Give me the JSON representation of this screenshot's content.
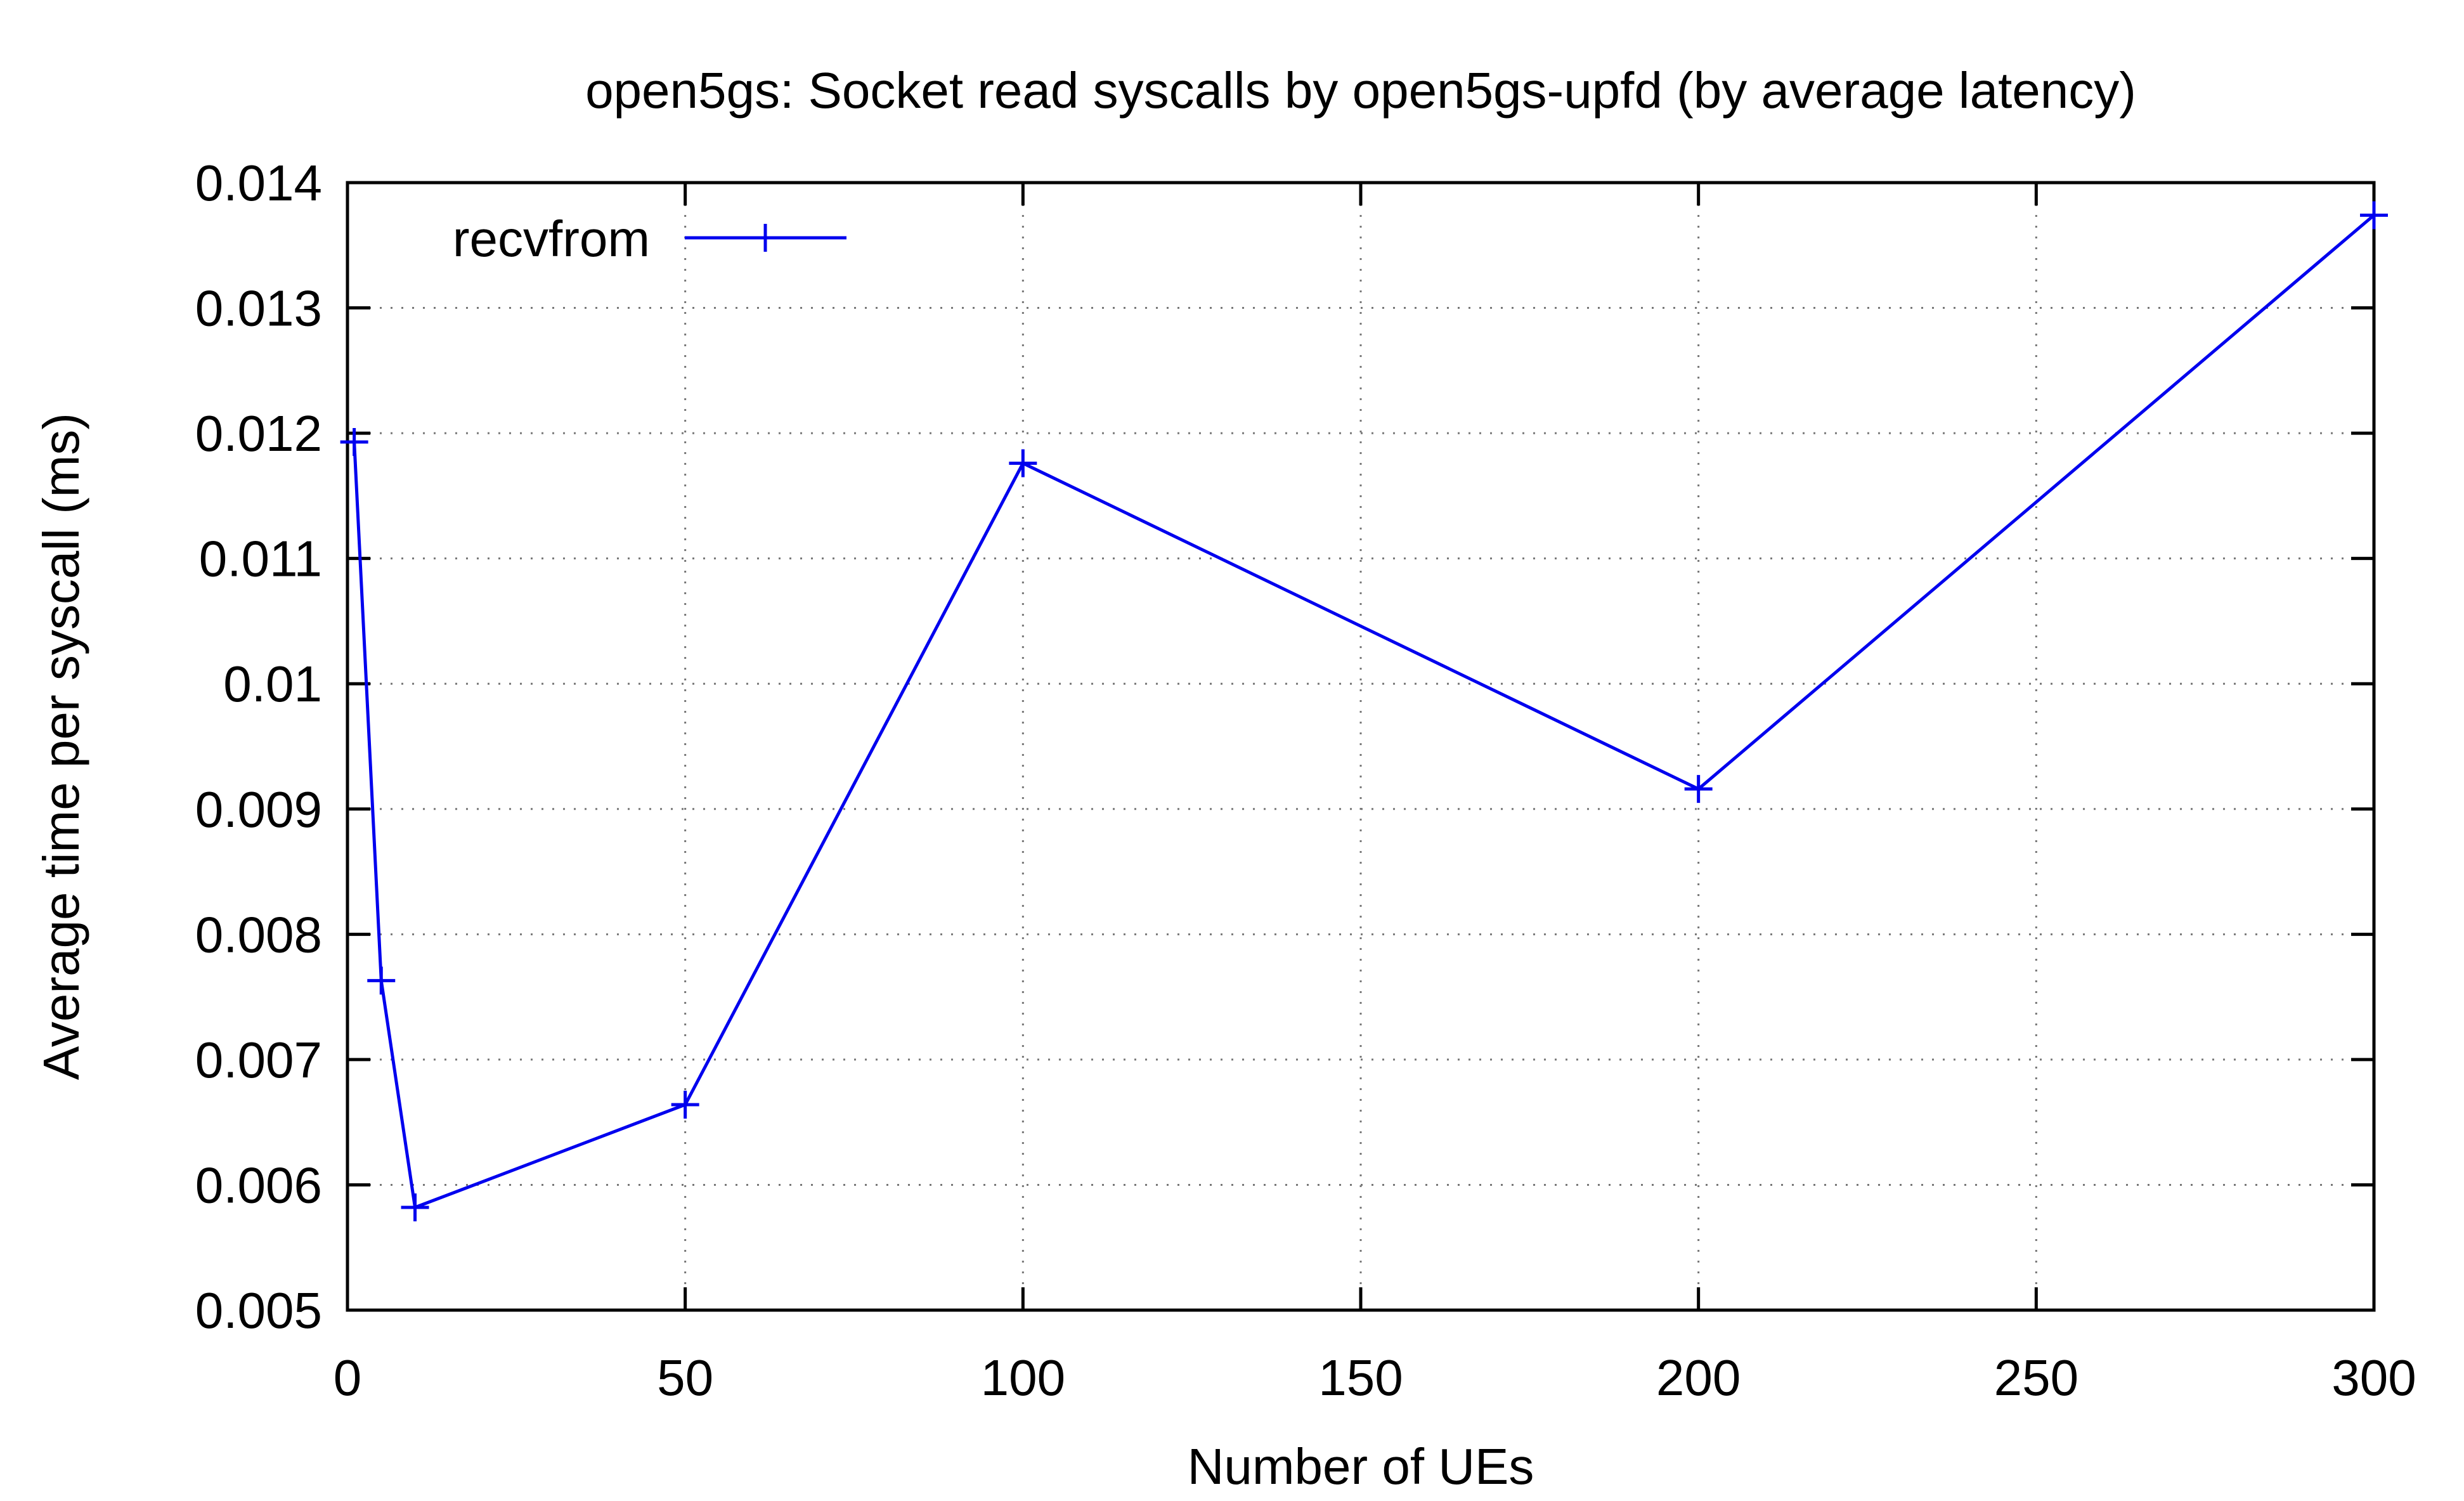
{
  "chart_data": {
    "type": "line",
    "title": "open5gs: Socket read syscalls by open5gs-upfd (by average latency)",
    "xlabel": "Number of UEs",
    "ylabel": "Average time per syscall (ms)",
    "xlim": [
      0,
      300
    ],
    "ylim": [
      0.005,
      0.014
    ],
    "x_ticks": [
      0,
      50,
      100,
      150,
      200,
      250,
      300
    ],
    "x_tick_labels": [
      "0",
      "50",
      "100",
      "150",
      "200",
      "250",
      "300"
    ],
    "y_ticks": [
      0.005,
      0.006,
      0.007,
      0.008,
      0.009,
      0.01,
      0.011,
      0.012,
      0.013,
      0.014
    ],
    "y_tick_labels": [
      "0.005",
      "0.006",
      "0.007",
      "0.008",
      "0.009",
      "0.01",
      "0.011",
      "0.012",
      "0.013",
      "0.014"
    ],
    "grid": true,
    "legend_position": "top-left",
    "series": [
      {
        "name": "recvfrom",
        "color": "#0000ee",
        "marker": "plus",
        "x": [
          1,
          5,
          10,
          50,
          100,
          200,
          300
        ],
        "y": [
          0.01193,
          0.00763,
          0.00582,
          0.00664,
          0.01176,
          0.00916,
          0.01374
        ]
      }
    ]
  }
}
